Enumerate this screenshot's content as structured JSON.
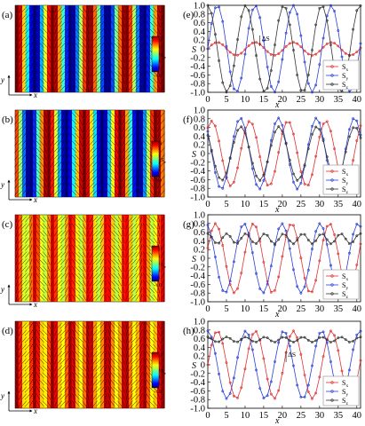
{
  "figure": {
    "rows": [
      {
        "map_label": "(a)",
        "plot_label": "(e)",
        "color_axis": "S_z",
        "uniform_sz": null,
        "phase": 0.0,
        "cbar": {
          "top": "1",
          "bottom": "-1.0",
          "sym": "S",
          "sub": "z"
        },
        "delta": {
          "text": "ΔS",
          "x": 14
        }
      },
      {
        "map_label": "(b)",
        "plot_label": "(f)",
        "color_axis": "S_z",
        "uniform_sz": null,
        "phase": 0.9,
        "cbar": {
          "top": "1",
          "bottom": "-1.0",
          "sym": "S",
          "sub": "z"
        },
        "delta": null
      },
      {
        "map_label": "(c)",
        "plot_label": "(g)",
        "color_axis": "S_z",
        "uniform_sz": 0.45,
        "phase": 0.3,
        "cbar": {
          "top": "1",
          "bottom": "-1.0",
          "sym": "S",
          "sub": "z"
        },
        "delta": null
      },
      {
        "map_label": "(d)",
        "plot_label": "(h)",
        "color_axis": "S_z",
        "uniform_sz": 0.58,
        "phase": 0.0,
        "cbar": {
          "top": "1",
          "bottom": "-1.0",
          "sym": "S",
          "sub": "z"
        },
        "delta": {
          "text": "ΔS",
          "x": 21
        }
      }
    ],
    "axis_x_letter": "x",
    "axis_y_letter": "y",
    "plot_ylabel": "S",
    "plot_xlabel": "x",
    "xticks": [
      "0",
      "5",
      "10",
      "15",
      "20",
      "25",
      "30",
      "35",
      "40"
    ],
    "yticks": [
      "1.0",
      "0.8",
      "0.6",
      "0.4",
      "0.2",
      "0",
      "-0.2",
      "-0.4",
      "-0.6",
      "-0.8",
      "-1.0"
    ]
  },
  "chart_data": [
    {
      "type": "line",
      "panel": "(e)",
      "xlabel": "x",
      "ylabel": "S",
      "xlim": [
        0,
        41
      ],
      "ylim": [
        -1,
        1
      ],
      "series": [
        {
          "name": "S_x",
          "color": "#e03030",
          "amplitude": 0.15,
          "center": 0.0,
          "period": 10.2,
          "phase": 0.0,
          "kind": "sin"
        },
        {
          "name": "S_y",
          "color": "#2a3fd6",
          "amplitude": 1.0,
          "center": 0.0,
          "period": 10.2,
          "phase": 0.0,
          "kind": "sin"
        },
        {
          "name": "S_z",
          "color": "#333333",
          "amplitude": 1.0,
          "center": 0.0,
          "period": 10.2,
          "phase": 0.0,
          "kind": "cos"
        }
      ]
    },
    {
      "type": "line",
      "panel": "(f)",
      "xlabel": "x",
      "ylabel": "S",
      "xlim": [
        0,
        41
      ],
      "ylim": [
        -1,
        1
      ],
      "series": [
        {
          "name": "S_x",
          "color": "#e03030",
          "amplitude": 0.75,
          "center": 0.0,
          "period": 10.2,
          "phase": 0.9,
          "kind": "sin"
        },
        {
          "name": "S_y",
          "color": "#2a3fd6",
          "amplitude": 0.82,
          "center": 0.0,
          "period": 10.2,
          "phase": 0.9,
          "kind": "cos"
        },
        {
          "name": "S_z",
          "color": "#333333",
          "amplitude": 0.62,
          "center": 0.0,
          "period": 10.2,
          "phase": 2.4,
          "kind": "sin"
        }
      ]
    },
    {
      "type": "line",
      "panel": "(g)",
      "xlabel": "x",
      "ylabel": "S",
      "xlim": [
        0,
        41
      ],
      "ylim": [
        -1,
        1
      ],
      "series": [
        {
          "name": "S_x",
          "color": "#e03030",
          "amplitude": 0.8,
          "center": 0.0,
          "period": 10.2,
          "phase": 0.3,
          "kind": "sin"
        },
        {
          "name": "S_y",
          "color": "#2a3fd6",
          "amplitude": 0.8,
          "center": 0.0,
          "period": 10.2,
          "phase": 0.3,
          "kind": "cos"
        },
        {
          "name": "S_z",
          "color": "#333333",
          "amplitude": 0.12,
          "center": 0.45,
          "period": 5.1,
          "phase": 0.0,
          "kind": "cos"
        }
      ]
    },
    {
      "type": "line",
      "panel": "(h)",
      "xlabel": "x",
      "ylabel": "S",
      "xlim": [
        0,
        41
      ],
      "ylim": [
        -1,
        1
      ],
      "series": [
        {
          "name": "S_x",
          "color": "#e03030",
          "amplitude": 0.78,
          "center": 0.0,
          "period": 10.2,
          "phase": 0.0,
          "kind": "sin"
        },
        {
          "name": "S_y",
          "color": "#2a3fd6",
          "amplitude": 0.78,
          "center": 0.0,
          "period": 10.2,
          "phase": 0.0,
          "kind": "cos"
        },
        {
          "name": "S_z",
          "color": "#333333",
          "amplitude": 0.06,
          "center": 0.58,
          "period": 5.1,
          "phase": 0.0,
          "kind": "cos"
        }
      ]
    }
  ]
}
